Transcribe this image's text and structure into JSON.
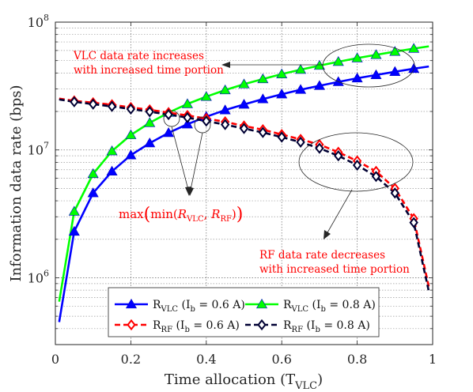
{
  "chart_data": {
    "type": "line",
    "xlabel": "Time allocation (T",
    "xlabel_sub": "VLC",
    "xlabel_end": ")",
    "ylabel": "Information data rate (bps)",
    "xlim": [
      0,
      1
    ],
    "ylim": [
      300000,
      100000000
    ],
    "yscale": "log",
    "grid": true,
    "legend_position": "bottom-center",
    "x_ticks": [
      {
        "value": 0,
        "label": "0"
      },
      {
        "value": 0.2,
        "label": "0.2"
      },
      {
        "value": 0.4,
        "label": "0.4"
      },
      {
        "value": 0.6,
        "label": "0.6"
      },
      {
        "value": 0.8,
        "label": "0.8"
      },
      {
        "value": 1,
        "label": "1"
      }
    ],
    "y_ticks": [
      {
        "value": 1000000,
        "base": "10",
        "exp": "6"
      },
      {
        "value": 10000000,
        "base": "10",
        "exp": "7"
      },
      {
        "value": 100000000,
        "base": "10",
        "exp": "8"
      }
    ],
    "x": [
      0.01,
      0.05,
      0.1,
      0.15,
      0.2,
      0.25,
      0.3,
      0.35,
      0.4,
      0.45,
      0.5,
      0.55,
      0.6,
      0.65,
      0.7,
      0.75,
      0.8,
      0.85,
      0.9,
      0.95,
      0.99
    ],
    "series": [
      {
        "name": "R_VLC (I_b = 0.6 A)",
        "legend_main": "R",
        "legend_sub": "VLC",
        "legend_rest": " (I",
        "legend_sub2": "b",
        "legend_end": " = 0.6 A)",
        "color": "#0000ff",
        "marker": "triangle",
        "dashed": false,
        "values": [
          450000,
          2300000,
          4600000,
          6800000,
          9100000,
          11300000,
          13600000,
          15900000,
          18200000,
          20500000,
          22700000,
          25000000,
          27300000,
          29600000,
          31800000,
          34100000,
          36400000,
          38600000,
          40900000,
          43200000,
          45000000
        ]
      },
      {
        "name": "R_VLC (I_b = 0.8 A)",
        "legend_main": "R",
        "legend_sub": "VLC",
        "legend_rest": " (I",
        "legend_sub2": "b",
        "legend_end": " = 0.8 A)",
        "color": "#00ff00",
        "marker": "triangle",
        "dashed": false,
        "values": [
          650000,
          3300000,
          6500000,
          9800000,
          13100000,
          16300000,
          19600000,
          22900000,
          26100000,
          29400000,
          32700000,
          35900000,
          39200000,
          42500000,
          45700000,
          49000000,
          52300000,
          55500000,
          58800000,
          62100000,
          64700000
        ]
      },
      {
        "name": "R_RF (I_b = 0.6 A)",
        "legend_main": "R",
        "legend_sub": "RF",
        "legend_rest": " (I",
        "legend_sub2": "b",
        "legend_end": " = 0.6 A)",
        "color": "#ff0000",
        "marker": "diamond",
        "dashed": true,
        "values": [
          25200000,
          24200000,
          23400000,
          22600000,
          21500000,
          20600000,
          19600000,
          18600000,
          17600000,
          16600000,
          15400000,
          14400000,
          13200000,
          12100000,
          11000000,
          9600000,
          8200000,
          6800000,
          5000000,
          2900000,
          850000
        ]
      },
      {
        "name": "R_RF (I_b = 0.8 A)",
        "legend_main": "R",
        "legend_sub": "RF",
        "legend_rest": " (I",
        "legend_sub2": "b",
        "legend_end": " = 0.8 A)",
        "color": "#000033",
        "marker": "diamond",
        "dashed": true,
        "values": [
          24800000,
          23800000,
          22800000,
          21900000,
          20900000,
          19900000,
          18900000,
          17900000,
          16800000,
          15800000,
          14700000,
          13700000,
          12600000,
          11500000,
          10300000,
          9000000,
          7600000,
          6200000,
          4600000,
          2700000,
          780000
        ]
      }
    ],
    "annotations": {
      "vlc_line1": "VLC data rate increases",
      "vlc_line2": "with increased time portion",
      "rf_line1": "RF data rate decreases",
      "rf_line2": "with increased time portion",
      "max_text": "max",
      "min_text": "min",
      "r_vlc": "R",
      "r_vlc_sub": "VLC",
      "comma": ",",
      "r_rf": "R",
      "r_rf_sub": "RF"
    }
  }
}
